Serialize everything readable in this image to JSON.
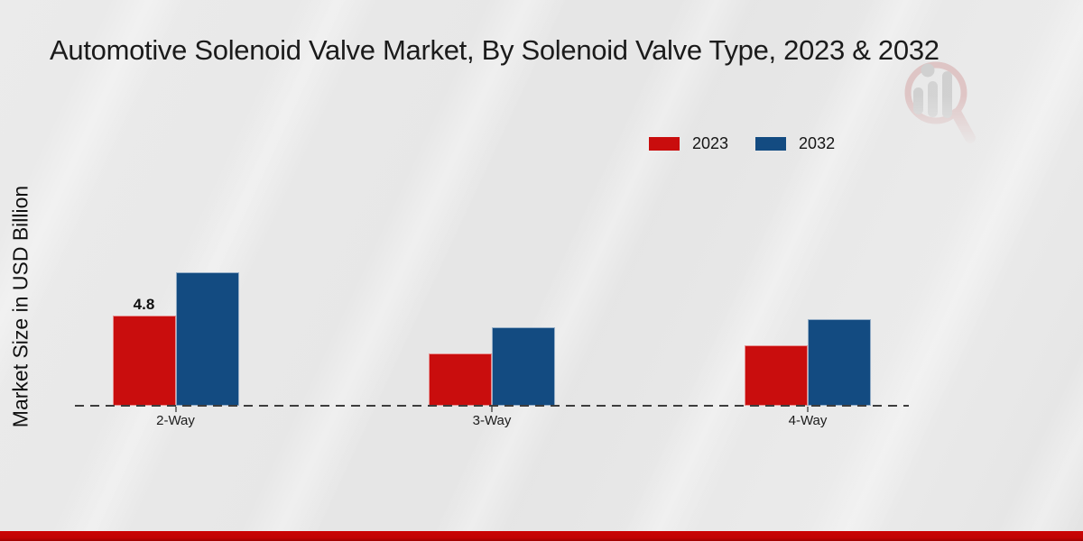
{
  "page": {
    "title": "Automotive Solenoid Valve Market, By Solenoid Valve Type, 2023 & 2032"
  },
  "branding": {
    "watermark_icon": "magnifier-bar-chart-logo",
    "watermark_circle_color": "#c97a7a",
    "watermark_bar_color": "#9d9d9d",
    "footer_color": "#c00303"
  },
  "chart_data": {
    "type": "bar",
    "title": "Automotive Solenoid Valve Market, By Solenoid Valve Type, 2023 & 2032",
    "xlabel": "",
    "ylabel": "Market Size in USD Billion",
    "categories": [
      "2-Way",
      "3-Way",
      "4-Way"
    ],
    "series": [
      {
        "name": "2023",
        "color": "#c90d0d",
        "values": [
          4.8,
          2.8,
          3.2
        ]
      },
      {
        "name": "2032",
        "color": "#134b81",
        "values": [
          7.1,
          4.2,
          4.6
        ]
      }
    ],
    "annotations": [
      {
        "series": "2023",
        "category": "2-Way",
        "text": "4.8"
      }
    ],
    "ylim": [
      0,
      7.5
    ],
    "grid": false,
    "y_axis_ticks_visible": false,
    "baseline_style": "dashed",
    "legend_position": "top-right"
  }
}
